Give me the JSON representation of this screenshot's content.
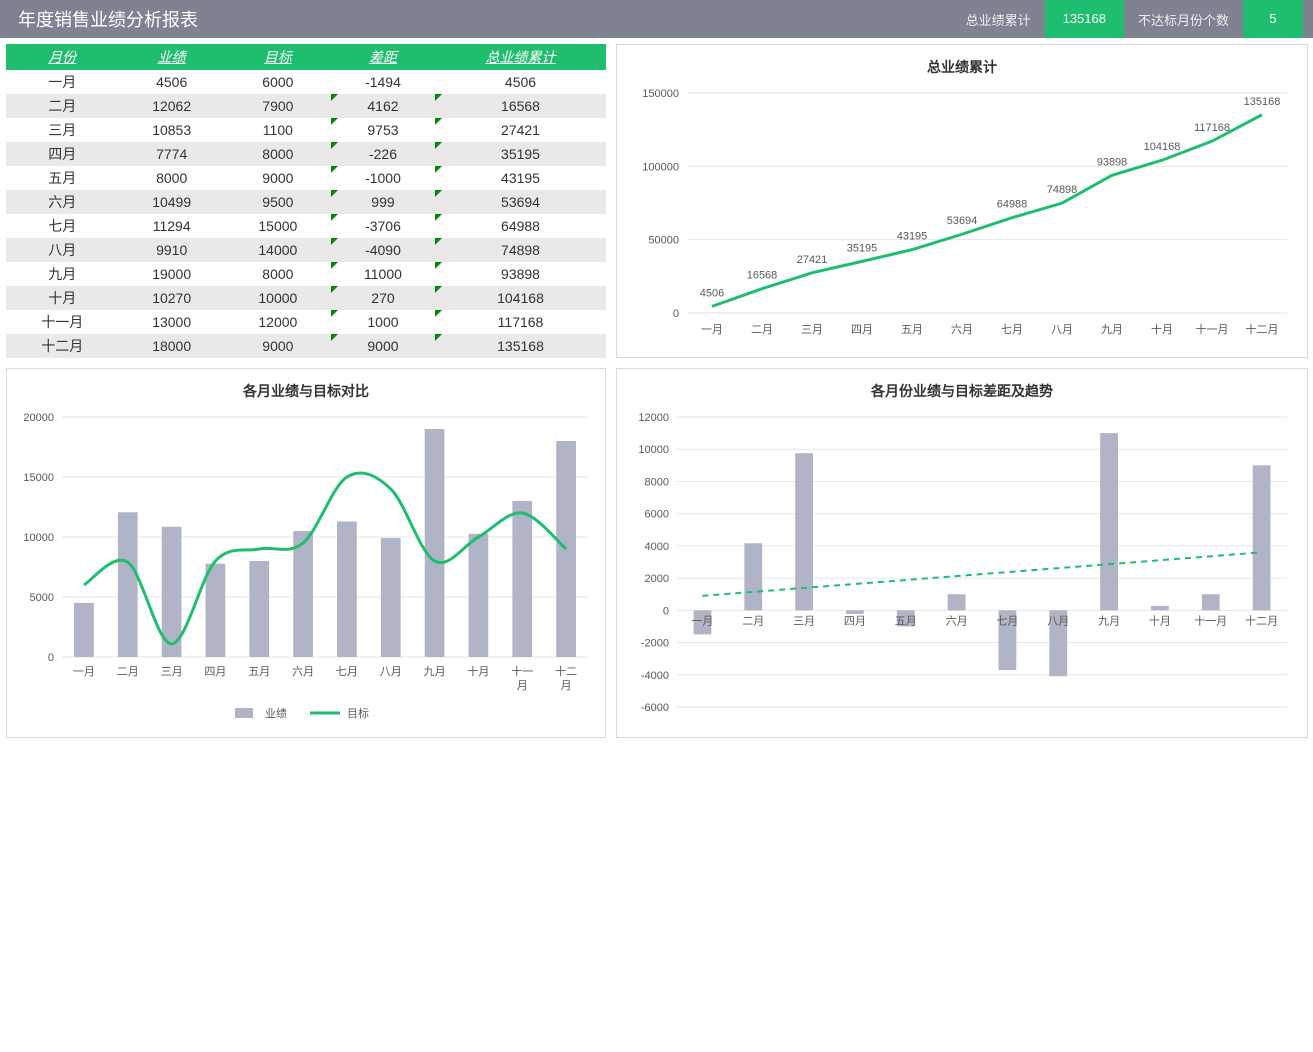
{
  "header": {
    "title": "年度销售业绩分析报表",
    "stat1_label": "总业绩累计",
    "stat1_value": "135168",
    "stat2_label": "不达标月份个数",
    "stat2_value": "5"
  },
  "table": {
    "columns": [
      "月份",
      "业绩",
      "目标",
      "差距",
      "总业绩累计"
    ],
    "rows": [
      [
        "一月",
        4506,
        6000,
        -1494,
        4506
      ],
      [
        "二月",
        12062,
        7900,
        4162,
        16568
      ],
      [
        "三月",
        10853,
        1100,
        9753,
        27421
      ],
      [
        "四月",
        7774,
        8000,
        -226,
        35195
      ],
      [
        "五月",
        8000,
        9000,
        -1000,
        43195
      ],
      [
        "六月",
        10499,
        9500,
        999,
        53694
      ],
      [
        "七月",
        11294,
        15000,
        -3706,
        64988
      ],
      [
        "八月",
        9910,
        14000,
        -4090,
        74898
      ],
      [
        "九月",
        19000,
        8000,
        11000,
        93898
      ],
      [
        "十月",
        10270,
        10000,
        270,
        104168
      ],
      [
        "十一月",
        13000,
        12000,
        1000,
        117168
      ],
      [
        "十二月",
        18000,
        9000,
        9000,
        135168
      ]
    ],
    "flag_rows_gap": [
      1,
      2,
      3,
      4,
      5,
      6,
      7,
      8,
      9,
      10,
      11
    ],
    "flag_rows_cum": [
      1,
      2,
      3,
      4,
      5,
      6,
      7,
      8,
      9,
      10,
      11
    ]
  },
  "months": [
    "一月",
    "二月",
    "三月",
    "四月",
    "五月",
    "六月",
    "七月",
    "八月",
    "九月",
    "十月",
    "十一月",
    "十二月"
  ],
  "colors": {
    "bar": "#b0b4c6",
    "line": "#1ebe6e",
    "grid": "#e6e6e6",
    "text": "#595959",
    "header_bg": "#7e8291",
    "table_header": "#1ebe6e"
  },
  "chart_cum": {
    "title": "总业绩累计",
    "values": [
      4506,
      16568,
      27421,
      35195,
      43195,
      53694,
      64988,
      74898,
      93898,
      104168,
      117168,
      135168
    ],
    "ylim": [
      0,
      150000
    ],
    "ytick_step": 50000,
    "line_width": 3
  },
  "chart_compare": {
    "title": "各月业绩与目标对比",
    "series": {
      "业绩": [
        4506,
        12062,
        10853,
        7774,
        8000,
        10499,
        11294,
        9910,
        19000,
        10270,
        13000,
        18000
      ],
      "目标": [
        6000,
        7900,
        1100,
        8000,
        9000,
        9500,
        15000,
        14000,
        8000,
        10000,
        12000,
        9000
      ]
    },
    "ylim": [
      0,
      20000
    ],
    "ytick_step": 5000,
    "legend": [
      "业绩",
      "目标"
    ],
    "bar_width": 0.45
  },
  "chart_gap": {
    "title": "各月份业绩与目标差距及趋势",
    "values": [
      -1494,
      4162,
      9753,
      -226,
      -1000,
      999,
      -3706,
      -4090,
      11000,
      270,
      1000,
      9000
    ],
    "ylim": [
      -6000,
      12000
    ],
    "ytick_step": 2000,
    "trend_start": 900,
    "trend_end": 3600
  }
}
